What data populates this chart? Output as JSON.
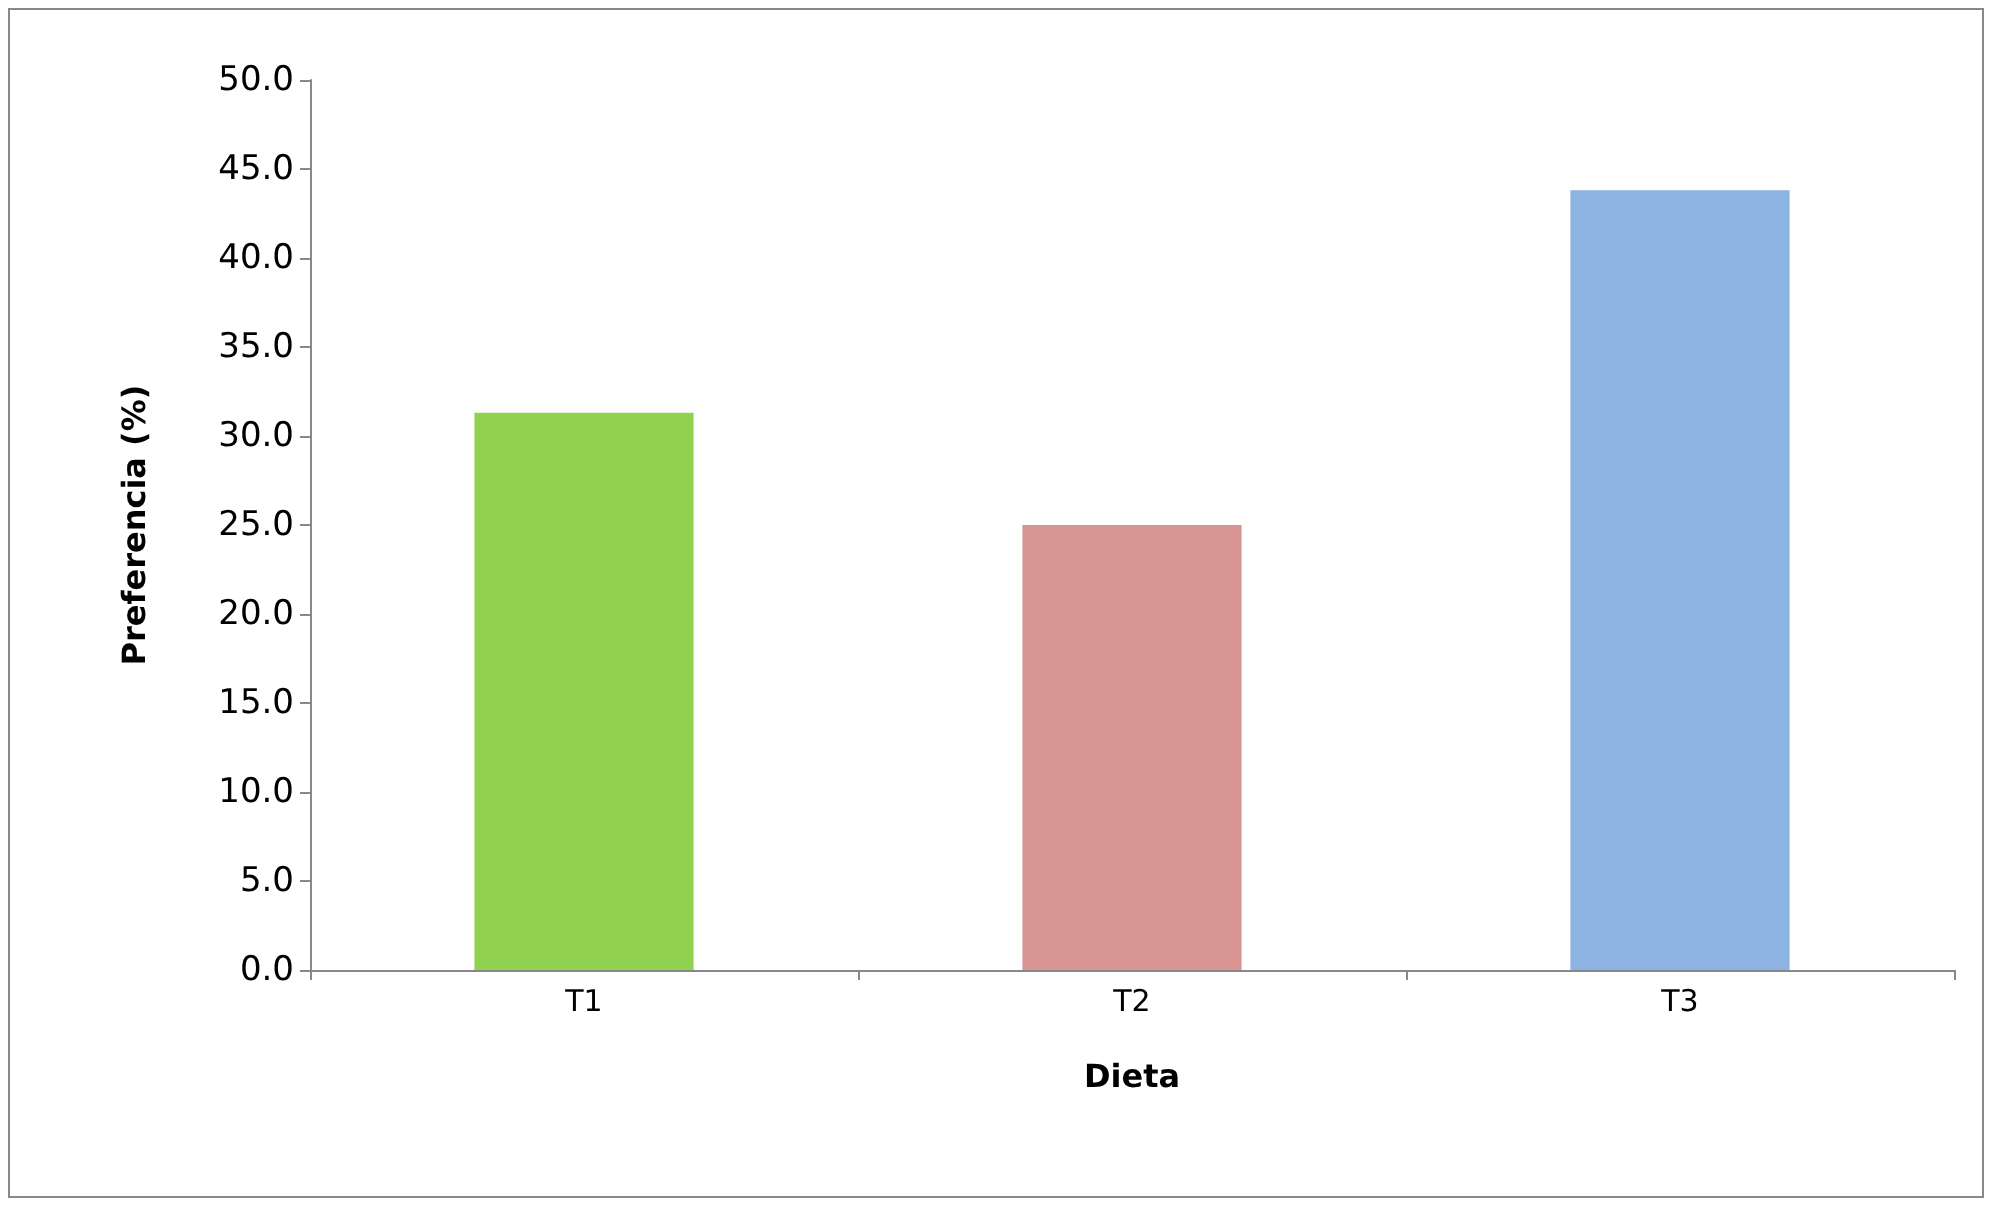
{
  "chart_data": {
    "type": "bar",
    "xlabel": "Dieta",
    "ylabel": "Preferencia (%)",
    "categories": [
      "T1",
      "T2",
      "T3"
    ],
    "values": [
      31.3,
      25.0,
      43.8
    ],
    "colors": [
      "#92d050",
      "#d99594",
      "#8db3e2"
    ],
    "ylim": [
      0,
      50
    ],
    "yticks": [
      {
        "value": 0,
        "label": "0.0"
      },
      {
        "value": 5,
        "label": "5.0"
      },
      {
        "value": 10,
        "label": "10.0"
      },
      {
        "value": 15,
        "label": "15.0"
      },
      {
        "value": 20,
        "label": "20.0"
      },
      {
        "value": 25,
        "label": "25.0"
      },
      {
        "value": 30,
        "label": "30.0"
      },
      {
        "value": 35,
        "label": "35.0"
      },
      {
        "value": 40,
        "label": "40.0"
      },
      {
        "value": 45,
        "label": "45.0"
      },
      {
        "value": 50,
        "label": "50.0"
      }
    ],
    "grid": false
  }
}
